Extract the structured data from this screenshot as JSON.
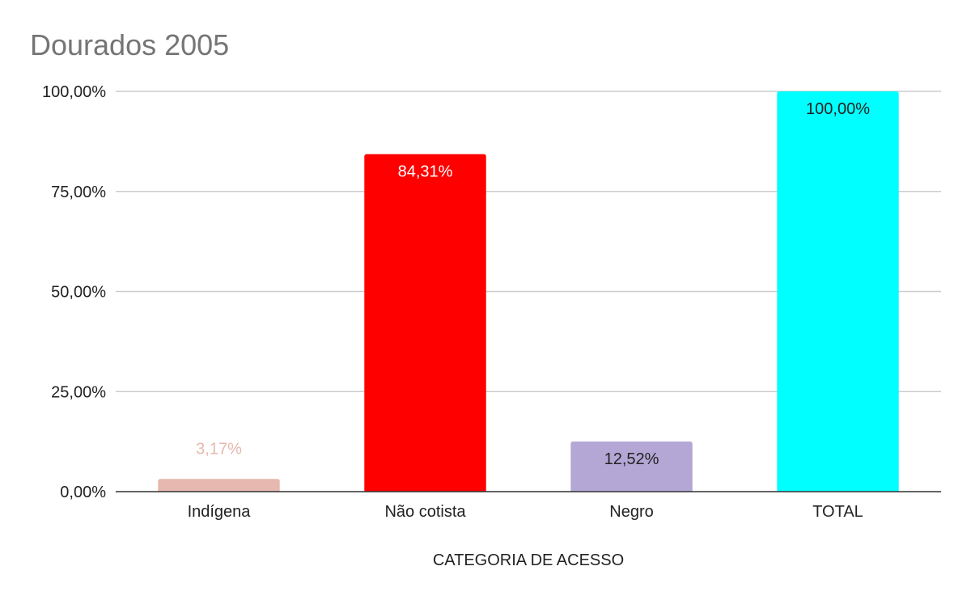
{
  "chart_data": {
    "type": "bar",
    "title": "Dourados 2005",
    "xlabel": "CATEGORIA DE ACESSO",
    "ylabel": "",
    "ylim": [
      0,
      100
    ],
    "yticks": [
      0,
      25,
      50,
      75,
      100
    ],
    "ytick_labels": [
      "0,00%",
      "25,00%",
      "50,00%",
      "75,00%",
      "100,00%"
    ],
    "grid": true,
    "legend": "none",
    "categories": [
      "Indígena",
      "Não cotista",
      "Negro",
      "TOTAL"
    ],
    "values": [
      3.17,
      84.31,
      12.52,
      100.0
    ],
    "value_labels": [
      "3,17%",
      "84,31%",
      "12,52%",
      "100,00%"
    ],
    "bar_colors": [
      "#e6b8af",
      "#ff0000",
      "#b4a7d6",
      "#00ffff"
    ],
    "label_colors": [
      "#e6b8af",
      "#ffffff",
      "#222222",
      "#222222"
    ],
    "colors": {
      "title": "#757575",
      "grid": "#cccccc",
      "axis": "#333333",
      "text": "#222222"
    }
  }
}
